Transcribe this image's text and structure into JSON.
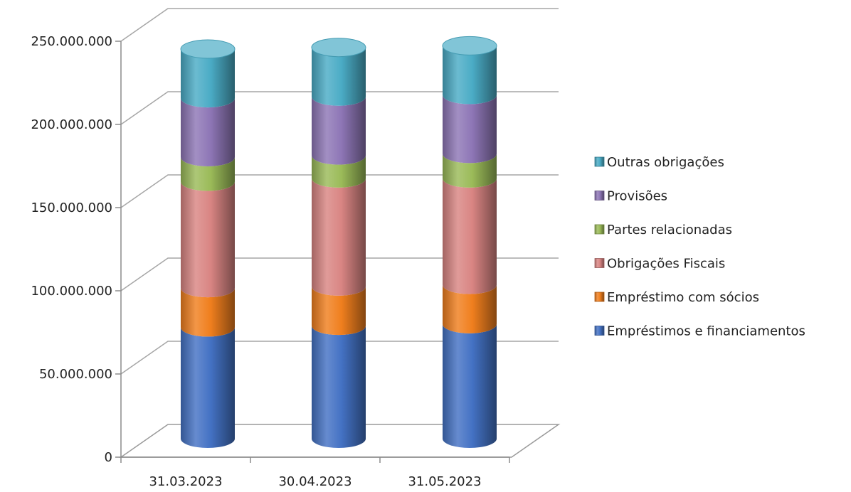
{
  "chart_data": {
    "type": "bar",
    "stacked": true,
    "three_d": true,
    "shape": "cylinder",
    "title": "",
    "xlabel": "",
    "ylabel": "",
    "categories": [
      "31.03.2023",
      "30.04.2023",
      "31.05.2023"
    ],
    "ylim": [
      0,
      250000000
    ],
    "y_ticks": [
      0,
      50000000,
      100000000,
      150000000,
      200000000,
      250000000
    ],
    "y_tick_labels": [
      "0",
      "50.000.000",
      "100.000.000",
      "150.000.000",
      "200.000.000",
      "250.000.000"
    ],
    "grid": true,
    "legend_position": "right",
    "series": [
      {
        "name": "Empréstimos e financiamentos",
        "color": "#4472C4",
        "values": [
          68000000,
          69000000,
          70000000
        ]
      },
      {
        "name": "Empréstimo com sócios",
        "color": "#F07F1E",
        "values": [
          24000000,
          24000000,
          24000000
        ]
      },
      {
        "name": "Obrigações Fiscais",
        "color": "#D98583",
        "values": [
          65000000,
          66000000,
          65000000
        ]
      },
      {
        "name": "Partes relacionadas",
        "color": "#9BBB59",
        "values": [
          15000000,
          14000000,
          15000000
        ]
      },
      {
        "name": "Provisões",
        "color": "#8E76B6",
        "values": [
          36000000,
          36000000,
          36000000
        ]
      },
      {
        "name": "Outras obrigações",
        "color": "#4BACC6",
        "values": [
          30000000,
          30000000,
          30000000
        ]
      }
    ]
  }
}
